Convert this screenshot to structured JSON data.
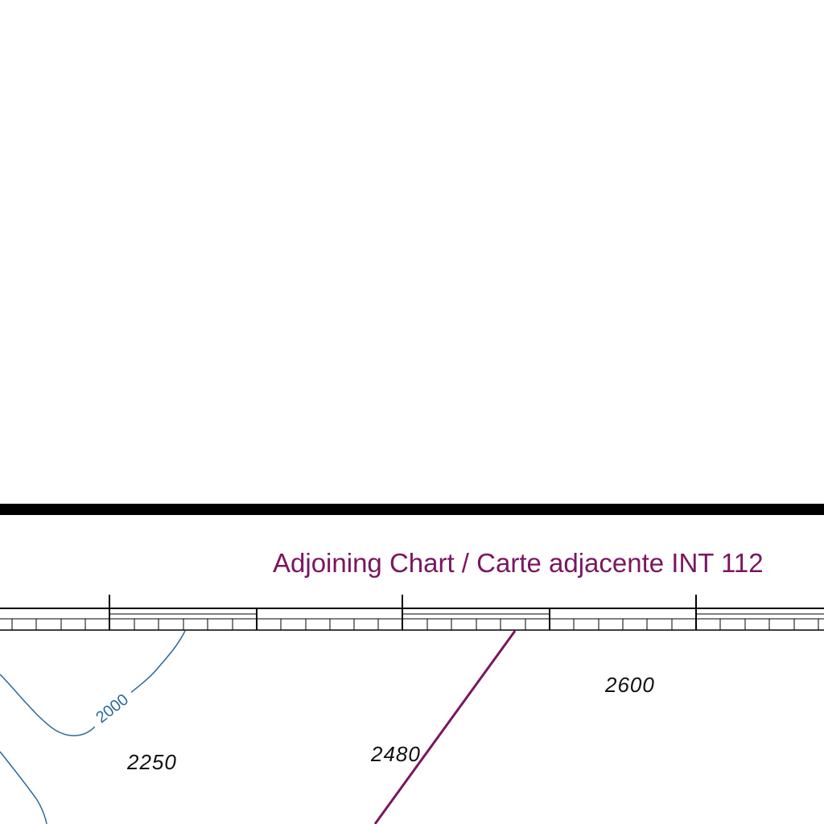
{
  "map": {
    "adjoining_chart_label": "Adjoining Chart / Carte adjacente INT 112",
    "contour": {
      "label": "2000",
      "color": "#2a6aa0"
    },
    "soundings": [
      {
        "value": "2600"
      },
      {
        "value": "2480"
      },
      {
        "value": "2250"
      }
    ],
    "colors": {
      "chart_border": "#000000",
      "boundary_line": "#7a1660",
      "background": "#ffffff"
    }
  }
}
